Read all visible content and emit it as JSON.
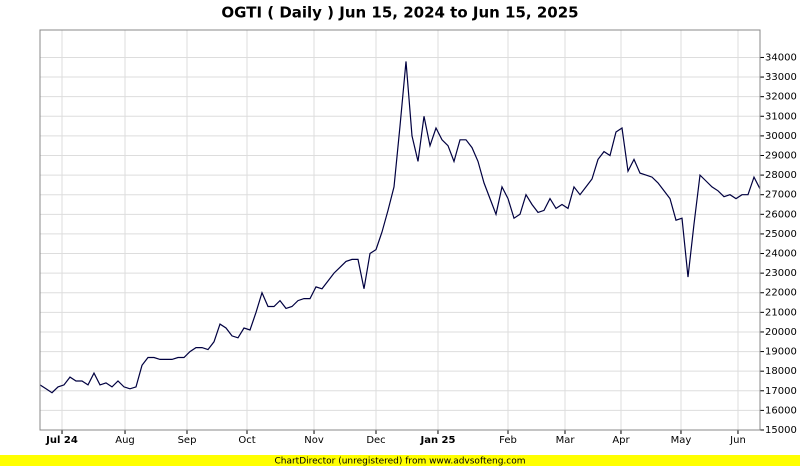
{
  "chart_data": {
    "type": "line",
    "title": "OGTI ( Daily ) Jun 15, 2024 to Jun 15, 2025",
    "footer": "ChartDirector (unregistered) from www.advsofteng.com",
    "color": "#000040",
    "grid": true,
    "xlim": [
      0,
      120
    ],
    "xticks": [
      {
        "value": 3.67,
        "label": "Jul 24"
      },
      {
        "value": 14.17,
        "label": "Aug"
      },
      {
        "value": 24.5,
        "label": "Sep"
      },
      {
        "value": 34.5,
        "label": "Oct"
      },
      {
        "value": 45.67,
        "label": "Nov"
      },
      {
        "value": 56,
        "label": "Dec"
      },
      {
        "value": 66.33,
        "label": "Jan 25"
      },
      {
        "value": 78,
        "label": "Feb"
      },
      {
        "value": 87.5,
        "label": "Mar"
      },
      {
        "value": 96.83,
        "label": "Apr"
      },
      {
        "value": 106.83,
        "label": "May"
      },
      {
        "value": 116.33,
        "label": "Jun"
      }
    ],
    "ylim": [
      15000,
      35400
    ],
    "yticks": [
      15000,
      16000,
      17000,
      18000,
      19000,
      20000,
      21000,
      22000,
      23000,
      24000,
      25000,
      26000,
      27000,
      28000,
      29000,
      30000,
      31000,
      32000,
      33000,
      34000
    ],
    "values": [
      17300,
      17100,
      16900,
      17200,
      17300,
      17700,
      17500,
      17500,
      17300,
      17900,
      17300,
      17400,
      17200,
      17500,
      17200,
      17100,
      17200,
      18300,
      18700,
      18700,
      18600,
      18600,
      18600,
      18700,
      18700,
      19000,
      19200,
      19200,
      19100,
      19500,
      20400,
      20200,
      19800,
      19700,
      20200,
      20100,
      21000,
      22000,
      21300,
      21300,
      21600,
      21200,
      21300,
      21600,
      21700,
      21700,
      22300,
      22200,
      22600,
      23000,
      23300,
      23600,
      23700,
      23700,
      22200,
      24000,
      24200,
      25100,
      26200,
      27400,
      30500,
      33800,
      30000,
      28700,
      31000,
      29500,
      30400,
      29800,
      29500,
      28700,
      29800,
      29800,
      29400,
      28700,
      27600,
      26800,
      26000,
      27400,
      26800,
      25800,
      26000,
      27000,
      26500,
      26100,
      26200,
      26800,
      26300,
      26500,
      26300,
      27400,
      27000,
      27400,
      27800,
      28800,
      29200,
      29000,
      30200,
      30400,
      28200,
      28800,
      28100,
      28000,
      27900,
      27600,
      27200,
      26800,
      25700,
      25800,
      22800,
      25500,
      28000,
      27700,
      27400,
      27200,
      26900,
      27000,
      26800,
      27000,
      27000,
      27900,
      27300
    ]
  }
}
